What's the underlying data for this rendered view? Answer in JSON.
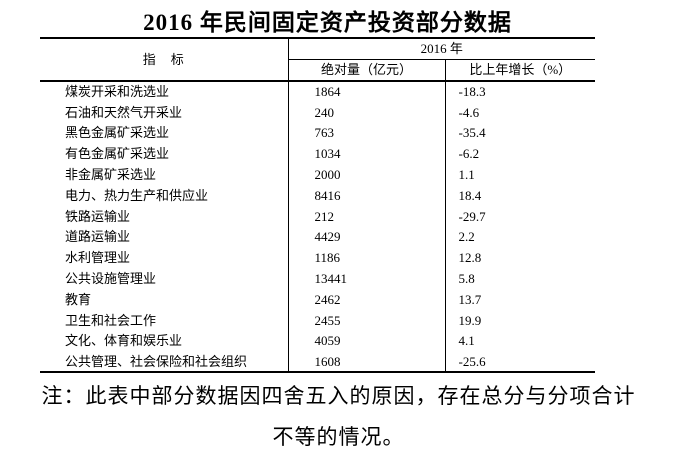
{
  "title": "2016 年民间固定资产投资部分数据",
  "colors": {
    "text": "#000000",
    "background": "#ffffff",
    "border": "#000000"
  },
  "table": {
    "header": {
      "indicator": "指　标",
      "year_group": "2016 年",
      "col_absolute": "绝对量（亿元）",
      "col_growth": "比上年增长（%）"
    },
    "rows": [
      {
        "label": "煤炭开采和洗选业",
        "absolute": "1864",
        "growth": "-18.3"
      },
      {
        "label": "石油和天然气开采业",
        "absolute": "240",
        "growth": "-4.6"
      },
      {
        "label": "黑色金属矿采选业",
        "absolute": "763",
        "growth": "-35.4"
      },
      {
        "label": "有色金属矿采选业",
        "absolute": "1034",
        "growth": "-6.2"
      },
      {
        "label": "非金属矿采选业",
        "absolute": "2000",
        "growth": "1.1"
      },
      {
        "label": "电力、热力生产和供应业",
        "absolute": "8416",
        "growth": "18.4"
      },
      {
        "label": "铁路运输业",
        "absolute": "212",
        "growth": "-29.7"
      },
      {
        "label": "道路运输业",
        "absolute": "4429",
        "growth": "2.2"
      },
      {
        "label": "水利管理业",
        "absolute": "1186",
        "growth": "12.8"
      },
      {
        "label": "公共设施管理业",
        "absolute": "13441",
        "growth": "5.8"
      },
      {
        "label": "教育",
        "absolute": "2462",
        "growth": "13.7"
      },
      {
        "label": "卫生和社会工作",
        "absolute": "2455",
        "growth": "19.9"
      },
      {
        "label": "文化、体育和娱乐业",
        "absolute": "4059",
        "growth": "4.1"
      },
      {
        "label": "公共管理、社会保险和社会组织",
        "absolute": "1608",
        "growth": "-25.6"
      }
    ]
  },
  "note": {
    "line1": "注：此表中部分数据因四舍五入的原因，存在总分与分项合计",
    "line2": "不等的情况。"
  },
  "chart_data": {
    "type": "table",
    "title": "2016 年民间固定资产投资部分数据",
    "categories": [
      "煤炭开采和洗选业",
      "石油和天然气开采业",
      "黑色金属矿采选业",
      "有色金属矿采选业",
      "非金属矿采选业",
      "电力、热力生产和供应业",
      "铁路运输业",
      "道路运输业",
      "水利管理业",
      "公共设施管理业",
      "教育",
      "卫生和社会工作",
      "文化、体育和娱乐业",
      "公共管理、社会保险和社会组织"
    ],
    "series": [
      {
        "name": "绝对量（亿元）",
        "values": [
          1864,
          240,
          763,
          1034,
          2000,
          8416,
          212,
          4429,
          1186,
          13441,
          2462,
          2455,
          4059,
          1608
        ]
      },
      {
        "name": "比上年增长（%）",
        "values": [
          -18.3,
          -4.6,
          -35.4,
          -6.2,
          1.1,
          18.4,
          -29.7,
          2.2,
          12.8,
          5.8,
          13.7,
          19.9,
          4.1,
          -25.6
        ]
      }
    ]
  }
}
